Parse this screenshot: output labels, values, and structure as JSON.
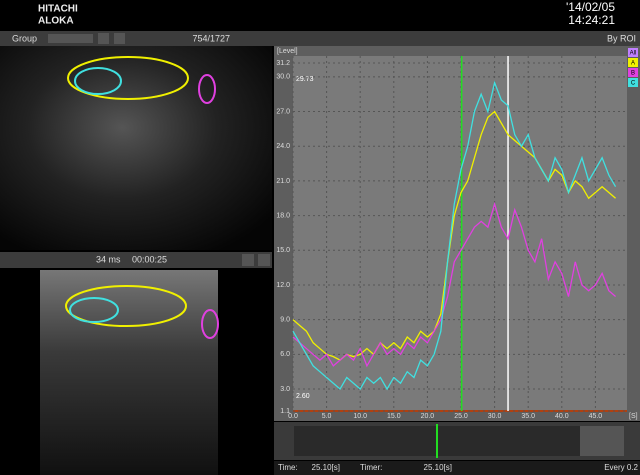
{
  "header": {
    "brand_line1": "HITACHI",
    "brand_line2": "ALOKA",
    "date": "'14/02/05",
    "time": "14:24:21"
  },
  "toolbar": {
    "group": "Group",
    "frame": "754/1727",
    "mode": "By ROI"
  },
  "image_bar": {
    "interval": "34 ms",
    "elapsed": "00:00:25"
  },
  "chart_data": {
    "type": "line",
    "y_label": "[Level]",
    "x_unit": "[S]",
    "x": [
      0,
      1,
      2,
      3,
      4,
      5,
      6,
      7,
      8,
      9,
      10,
      11,
      12,
      13,
      14,
      15,
      16,
      17,
      18,
      19,
      20,
      21,
      22,
      23,
      24,
      25,
      26,
      27,
      28,
      29,
      30,
      31,
      32,
      33,
      34,
      35,
      36,
      37,
      38,
      39,
      40,
      41,
      42,
      43,
      44,
      45,
      46,
      47,
      48
    ],
    "series": [
      {
        "name": "A",
        "color": "#f0f000",
        "values": [
          9.0,
          8.5,
          8.0,
          7.0,
          6.5,
          6.0,
          5.8,
          5.5,
          6.0,
          5.8,
          6.0,
          6.5,
          6.0,
          7.0,
          6.5,
          7.0,
          6.5,
          7.5,
          7.0,
          8.0,
          7.5,
          8.0,
          9.5,
          14,
          18,
          20,
          21,
          23,
          25,
          26.5,
          27,
          26,
          25,
          24.5,
          24,
          23.5,
          23,
          22,
          21,
          22,
          21.5,
          20,
          21,
          20.5,
          19.5,
          20,
          20.5,
          20,
          19.5
        ]
      },
      {
        "name": "B",
        "color": "#e040e0",
        "values": [
          7.5,
          7.0,
          6.5,
          6.0,
          5.5,
          6.0,
          5.0,
          5.5,
          6.0,
          5.5,
          6.5,
          5.0,
          6.0,
          7.0,
          6.0,
          6.5,
          6.0,
          7.0,
          6.5,
          7.5,
          7.0,
          8.0,
          9.0,
          11,
          14,
          15,
          16,
          17,
          17.5,
          17,
          19,
          17,
          16,
          18.5,
          17,
          15,
          14,
          16,
          12.5,
          14,
          13,
          11,
          14,
          12,
          11.5,
          12,
          13,
          11.5,
          11
        ]
      },
      {
        "name": "C",
        "color": "#40e0e0",
        "values": [
          8.0,
          7.0,
          6.0,
          5.0,
          4.5,
          4.0,
          3.5,
          3.0,
          4.0,
          3.5,
          3.0,
          4.0,
          3.5,
          4.0,
          3.0,
          4.0,
          3.5,
          4.5,
          4.0,
          5.5,
          5.0,
          6.0,
          8.0,
          14,
          19,
          22,
          24,
          27,
          28.5,
          27,
          29.5,
          28,
          27.5,
          25,
          24,
          25,
          23,
          22,
          21,
          23,
          22,
          20,
          21.5,
          23,
          21,
          22,
          23,
          21.5,
          20.5
        ]
      }
    ],
    "legend_all": "All",
    "legend_all_color": "#c080ff",
    "max_label": "29.73",
    "min_label": "2.60",
    "markers": [
      {
        "value": 25.1,
        "color": "#22dd22"
      },
      {
        "value": 32,
        "color": "#ffffff"
      }
    ],
    "xlim": [
      0,
      50
    ],
    "ylim": [
      1.1,
      31.2
    ],
    "xticks": [
      {
        "value": 0,
        "label": "0.0"
      },
      {
        "value": 5,
        "label": "5.0"
      },
      {
        "value": 10,
        "label": "10.0"
      },
      {
        "value": 15,
        "label": "15.0"
      },
      {
        "value": 20,
        "label": "20.0"
      },
      {
        "value": 25,
        "label": "25.0"
      },
      {
        "value": 30,
        "label": "30.0"
      },
      {
        "value": 35,
        "label": "35.0"
      },
      {
        "value": 40,
        "label": "40.0"
      },
      {
        "value": 45,
        "label": "45.0"
      }
    ],
    "yticks": [
      1.1,
      {
        "value": 3,
        "label": "3.0"
      },
      {
        "value": 6,
        "label": "6.0"
      },
      {
        "value": 9,
        "label": "9.0"
      },
      {
        "value": 12,
        "label": "12.0"
      },
      {
        "value": 15,
        "label": "15.0"
      },
      {
        "value": 18,
        "label": "18.0"
      },
      {
        "value": 21,
        "label": "21.0"
      },
      {
        "value": 24,
        "label": "24.0"
      },
      {
        "value": 27,
        "label": "27.0"
      },
      {
        "value": 30,
        "label": "30.0"
      },
      31.2
    ],
    "grid": true
  },
  "footer": {
    "time_label": "Time:",
    "time_value": "25.10[s]",
    "timer_label": "Timer:",
    "timer_value": "25.10[s]",
    "interval": "Every 0.2"
  }
}
